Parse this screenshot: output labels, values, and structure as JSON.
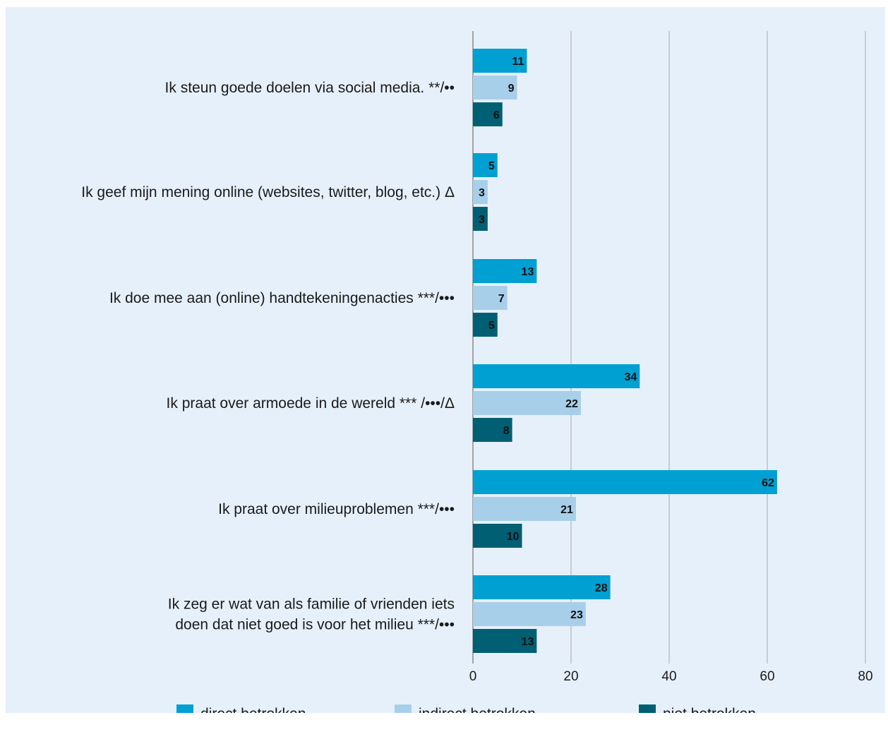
{
  "chart_data": {
    "type": "bar",
    "orientation": "horizontal",
    "categories": [
      [
        "Ik steun goede doelen via social media. **/••"
      ],
      [
        "Ik geef mijn mening online (websites, twitter, blog, etc.) Δ"
      ],
      [
        "Ik doe mee aan (online) handtekeningenacties ***/•••"
      ],
      [
        "Ik praat over armoede in de wereld *** /•••/Δ"
      ],
      [
        "Ik praat over milieuproblemen ***/•••"
      ],
      [
        "Ik zeg er wat van als familie of vrienden iets",
        "doen dat niet goed is voor het milieu ***/•••"
      ]
    ],
    "series": [
      {
        "name": "direct betrokken",
        "color": "#00a0d2",
        "values": [
          11,
          5,
          13,
          34,
          62,
          28
        ]
      },
      {
        "name": "indirect betrokken",
        "color": "#a8cfea",
        "values": [
          9,
          3,
          7,
          22,
          21,
          23
        ]
      },
      {
        "name": "niet betrokken",
        "color": "#005f73",
        "values": [
          6,
          3,
          5,
          8,
          10,
          13
        ]
      }
    ],
    "xlim": [
      0,
      80
    ],
    "xticks": [
      "0",
      "20",
      "40",
      "60",
      "80"
    ],
    "grid": true,
    "legend_position": "bottom"
  }
}
